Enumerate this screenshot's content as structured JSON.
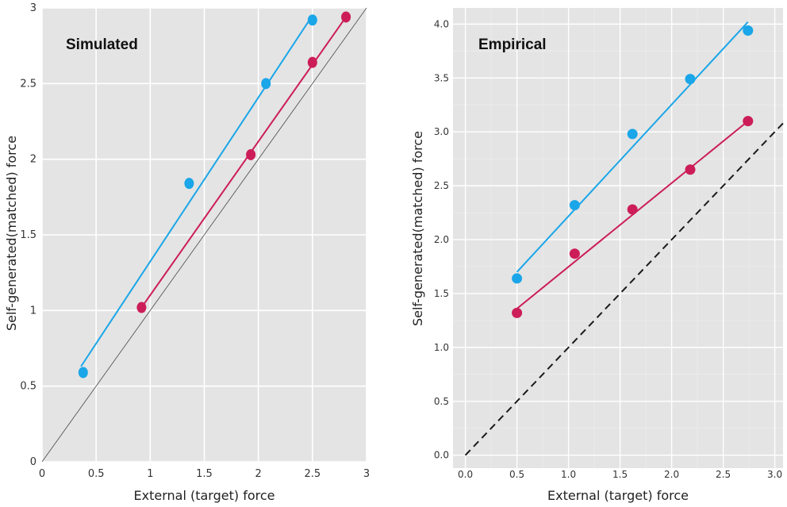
{
  "chart_data": [
    {
      "type": "scatter",
      "title": "Simulated",
      "xlabel": "External (target) force",
      "ylabel": "Self-generated(matched) force",
      "xlim": [
        0,
        3
      ],
      "ylim": [
        0,
        3
      ],
      "xticks": [
        "0",
        "0.5",
        "1",
        "1.5",
        "2",
        "2.5",
        "3"
      ],
      "yticks": [
        "0",
        "0.5",
        "1",
        "1.5",
        "2",
        "2.5",
        "3"
      ],
      "grid": true,
      "identity_line": "solid-thin",
      "series": [
        {
          "name": "blue",
          "color": "#1aa6e8",
          "points": [
            [
              0.38,
              0.59
            ],
            [
              1.36,
              1.84
            ],
            [
              2.07,
              2.5
            ],
            [
              2.5,
              2.92
            ]
          ],
          "fit": [
            [
              0.36,
              0.63
            ],
            [
              2.5,
              2.95
            ]
          ]
        },
        {
          "name": "red",
          "color": "#cc1d58",
          "points": [
            [
              0.92,
              1.02
            ],
            [
              1.93,
              2.03
            ],
            [
              2.5,
              2.64
            ],
            [
              2.81,
              2.94
            ]
          ],
          "fit": [
            [
              0.92,
              1.02
            ],
            [
              2.81,
              2.94
            ]
          ]
        }
      ]
    },
    {
      "type": "scatter",
      "title": "Empirical",
      "xlabel": "External (target) force",
      "ylabel": "Self-generated(matched) force",
      "xlim": [
        -0.12,
        3.08
      ],
      "ylim": [
        -0.12,
        4.15
      ],
      "xticks": [
        "0.0",
        "0.5",
        "1.0",
        "1.5",
        "2.0",
        "2.5",
        "3.0"
      ],
      "yticks": [
        "0.0",
        "0.5",
        "1.0",
        "1.5",
        "2.0",
        "2.5",
        "3.0",
        "3.5",
        "4.0"
      ],
      "grid": true,
      "identity_line": "dashed",
      "series": [
        {
          "name": "blue",
          "color": "#1aa6e8",
          "points": [
            [
              0.5,
              1.64
            ],
            [
              1.06,
              2.32
            ],
            [
              1.62,
              2.98
            ],
            [
              2.18,
              3.49
            ],
            [
              2.74,
              3.94
            ]
          ],
          "fit": [
            [
              0.5,
              1.7
            ],
            [
              2.74,
              4.02
            ]
          ]
        },
        {
          "name": "red",
          "color": "#cc1d58",
          "points": [
            [
              0.5,
              1.32
            ],
            [
              1.06,
              1.87
            ],
            [
              1.62,
              2.28
            ],
            [
              2.18,
              2.65
            ],
            [
              2.74,
              3.1
            ]
          ],
          "fit": [
            [
              0.5,
              1.36
            ],
            [
              2.74,
              3.1
            ]
          ]
        }
      ]
    }
  ]
}
